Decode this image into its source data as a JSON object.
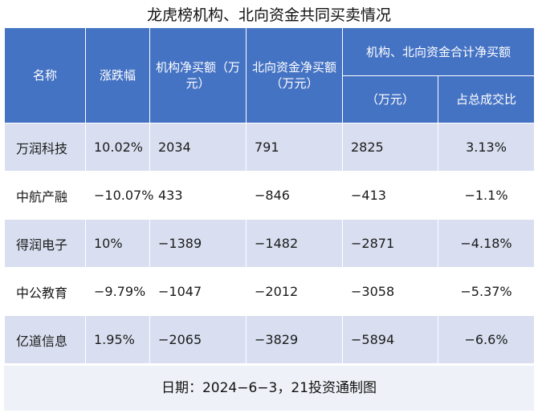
{
  "title": "龙虎榜机构、北向资金共同买卖情况",
  "headers": {
    "name": "名称",
    "change": "涨跌幅",
    "inst": "机构净买额（万元）",
    "north": "北向资金净买额（万元）",
    "combined_group": "机构、北向资金合计净买额",
    "combined_amount": "（万元）",
    "share": "占总成交比"
  },
  "rows": [
    {
      "name": "万润科技",
      "change": "10.02%",
      "inst": "2034",
      "north": "791",
      "total": "2825",
      "share": "3.13%"
    },
    {
      "name": "中航产融",
      "change": "−10.07%",
      "inst": "433",
      "north": "−846",
      "total": "−413",
      "share": "−1.1%"
    },
    {
      "name": "得润电子",
      "change": "10%",
      "inst": "−1389",
      "north": "−1482",
      "total": "−2871",
      "share": "−4.18%"
    },
    {
      "name": "中公教育",
      "change": "−9.79%",
      "inst": "−1047",
      "north": "−2012",
      "total": "−3058",
      "share": "−5.37%"
    },
    {
      "name": "亿道信息",
      "change": "1.95%",
      "inst": "−2065",
      "north": "−3829",
      "total": "−5894",
      "share": "−6.6%"
    }
  ],
  "footer": "日期：2024−6−3，21投资通制图"
}
